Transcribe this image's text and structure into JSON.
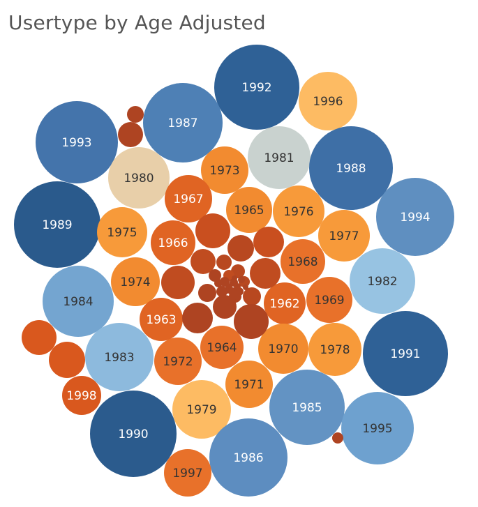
{
  "title": "Usertype by Age Adjusted",
  "chart_data": {
    "type": "packed-bubble",
    "title": "Usertype by Age Adjusted",
    "bubbles": [
      {
        "label": "1992",
        "color": "#2f6196"
      },
      {
        "label": "1996",
        "color": "#fdbb63"
      },
      {
        "label": "1987",
        "color": "#4e80b5"
      },
      {
        "label": "1993",
        "color": "#4474ab"
      },
      {
        "label": "1981",
        "color": "#c9d2cf"
      },
      {
        "label": "1988",
        "color": "#3e6fa6"
      },
      {
        "label": "1980",
        "color": "#e8cfa9"
      },
      {
        "label": "1973",
        "color": "#f28b30"
      },
      {
        "label": "1967",
        "color": "#e06423"
      },
      {
        "label": "1965",
        "color": "#f28b30"
      },
      {
        "label": "1976",
        "color": "#f79a3a"
      },
      {
        "label": "1994",
        "color": "#5f8fc0"
      },
      {
        "label": "1989",
        "color": "#2a5a8c"
      },
      {
        "label": "1975",
        "color": "#f79a3a"
      },
      {
        "label": "1966",
        "color": "#e06423"
      },
      {
        "label": "1977",
        "color": "#f79a3a"
      },
      {
        "label": "1968",
        "color": "#e8712a"
      },
      {
        "label": "1982",
        "color": "#97c3e2"
      },
      {
        "label": "1974",
        "color": "#f28b30"
      },
      {
        "label": "1984",
        "color": "#74a5d0"
      },
      {
        "label": "1962",
        "color": "#e06423"
      },
      {
        "label": "1969",
        "color": "#e8712a"
      },
      {
        "label": "1963",
        "color": "#e06423"
      },
      {
        "label": "1964",
        "color": "#e8712a"
      },
      {
        "label": "1970",
        "color": "#f28b30"
      },
      {
        "label": "1978",
        "color": "#f79a3a"
      },
      {
        "label": "1991",
        "color": "#2f6196"
      },
      {
        "label": "1983",
        "color": "#8dbadd"
      },
      {
        "label": "1972",
        "color": "#e8712a"
      },
      {
        "label": "1971",
        "color": "#f28b30"
      },
      {
        "label": "1998",
        "color": "#d9581e"
      },
      {
        "label": "1979",
        "color": "#fdbb63"
      },
      {
        "label": "1985",
        "color": "#6393c3"
      },
      {
        "label": "1995",
        "color": "#6ea1cf"
      },
      {
        "label": "1990",
        "color": "#2b5b8d"
      },
      {
        "label": "1986",
        "color": "#5d8dc0"
      },
      {
        "label": "1997",
        "color": "#e8712a"
      },
      {
        "label": "",
        "color": "#ae4422"
      },
      {
        "label": "",
        "color": "#ae4422"
      },
      {
        "label": "",
        "color": "#d9581e"
      },
      {
        "label": "",
        "color": "#d9581e"
      },
      {
        "label": "",
        "color": "#c94f1f"
      },
      {
        "label": "",
        "color": "#c94f1f"
      },
      {
        "label": "",
        "color": "#b84820"
      },
      {
        "label": "",
        "color": "#c04c20"
      },
      {
        "label": "",
        "color": "#c04c20"
      },
      {
        "label": "",
        "color": "#b84820"
      },
      {
        "label": "",
        "color": "#c04c20"
      },
      {
        "label": "",
        "color": "#b84820"
      },
      {
        "label": "",
        "color": "#b84820"
      },
      {
        "label": "",
        "color": "#c04c20"
      },
      {
        "label": "",
        "color": "#ae4422"
      },
      {
        "label": "",
        "color": "#b84820"
      },
      {
        "label": "",
        "color": "#ae4422"
      },
      {
        "label": "",
        "color": "#ae4422"
      },
      {
        "label": "",
        "color": "#ae4422"
      },
      {
        "label": "",
        "color": "#ae4422"
      },
      {
        "label": "",
        "color": "#ae4422"
      },
      {
        "label": "",
        "color": "#ae4422"
      },
      {
        "label": "",
        "color": "#ae4422"
      },
      {
        "label": "",
        "color": "#ae4422"
      },
      {
        "label": "",
        "color": "#ae4422"
      },
      {
        "label": "",
        "color": "#ae4422"
      },
      {
        "label": "",
        "color": "#ae4422"
      },
      {
        "label": "",
        "color": "#ae4422"
      },
      {
        "label": "",
        "color": "#ae4422"
      },
      {
        "label": "",
        "color": "#ae4422"
      },
      {
        "label": "",
        "color": "#ae4422"
      },
      {
        "label": "",
        "color": "#ae4422"
      },
      {
        "label": "",
        "color": "#ae4422"
      },
      {
        "label": "",
        "color": "#ae4422"
      },
      {
        "label": "",
        "color": "#ae4422"
      },
      {
        "label": "",
        "color": "#ae4422"
      }
    ]
  }
}
